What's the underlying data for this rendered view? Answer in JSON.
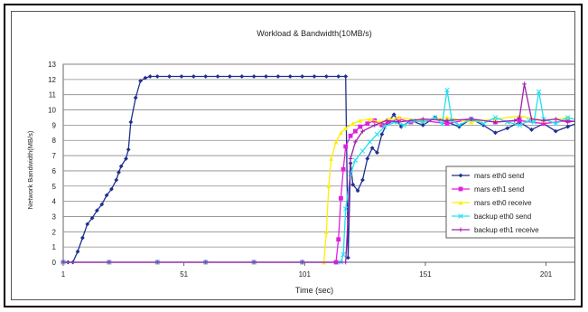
{
  "chart_data": {
    "type": "line",
    "title": "Workload & Bandwidth(10MB/s)",
    "xlabel": "Time (sec)",
    "ylabel": "Network Bandwidth(MB/s)",
    "xlim": [
      1,
      215
    ],
    "ylim": [
      0,
      13
    ],
    "x_ticks": [
      1,
      51,
      101,
      151,
      201
    ],
    "y_ticks": [
      0,
      1,
      2,
      3,
      4,
      5,
      6,
      7,
      8,
      9,
      10,
      11,
      12,
      13
    ],
    "grid": true,
    "legend_position": "right-center",
    "series": [
      {
        "name": "mars eth0 send",
        "color": "#1f2f8f",
        "marker": "diamond",
        "x": [
          1,
          3,
          5,
          7,
          9,
          11,
          13,
          15,
          17,
          19,
          21,
          23,
          24,
          25,
          27,
          28,
          29,
          31,
          33,
          35,
          37,
          40,
          45,
          50,
          55,
          60,
          65,
          70,
          75,
          80,
          85,
          90,
          95,
          100,
          105,
          110,
          115,
          118,
          119,
          120,
          121,
          123,
          125,
          127,
          129,
          131,
          133,
          135,
          138,
          141,
          145,
          150,
          155,
          160,
          165,
          170,
          175,
          180,
          185,
          190,
          195,
          200,
          205,
          210,
          215
        ],
        "y": [
          0,
          0,
          0,
          0.7,
          1.6,
          2.5,
          2.9,
          3.4,
          3.8,
          4.4,
          4.8,
          5.4,
          5.9,
          6.3,
          6.8,
          7.4,
          9.2,
          10.8,
          11.9,
          12.1,
          12.2,
          12.2,
          12.2,
          12.2,
          12.2,
          12.2,
          12.2,
          12.2,
          12.2,
          12.2,
          12.2,
          12.2,
          12.2,
          12.2,
          12.2,
          12.2,
          12.2,
          12.2,
          0.3,
          6.5,
          5.1,
          4.7,
          5.4,
          6.8,
          7.5,
          7.2,
          8.4,
          9.1,
          9.7,
          8.9,
          9.3,
          9.0,
          9.5,
          9.2,
          8.9,
          9.4,
          9.0,
          8.5,
          8.8,
          9.2,
          8.7,
          9.1,
          8.6,
          8.9,
          9.2
        ]
      },
      {
        "name": "mars eth1 send",
        "color": "#e020e0",
        "marker": "square",
        "x": [
          1,
          20,
          40,
          60,
          80,
          100,
          114,
          115,
          116,
          117,
          118,
          120,
          122,
          124,
          127,
          130,
          133,
          136,
          140,
          145,
          150,
          160,
          170,
          180,
          190,
          200,
          210,
          215
        ],
        "y": [
          0,
          0,
          0,
          0,
          0,
          0,
          0,
          1.5,
          4.2,
          6.1,
          7.6,
          8.3,
          8.6,
          8.9,
          9.1,
          9.3,
          9.0,
          9.2,
          9.4,
          9.2,
          9.3,
          9.1,
          9.4,
          9.2,
          9.3,
          9.1,
          9.3,
          9.2
        ]
      },
      {
        "name": "mars eth0 receive",
        "color": "#ffee00",
        "marker": "triangle",
        "x": [
          1,
          20,
          40,
          60,
          80,
          100,
          109,
          110,
          111,
          112,
          114,
          116,
          118,
          121,
          124,
          128,
          132,
          136,
          140,
          150,
          160,
          170,
          180,
          190,
          200,
          210,
          215
        ],
        "y": [
          0,
          0,
          0,
          0,
          0,
          0,
          0,
          2.0,
          5.0,
          6.8,
          7.9,
          8.5,
          8.8,
          9.1,
          9.3,
          9.4,
          9.2,
          9.4,
          9.5,
          9.3,
          9.5,
          9.2,
          9.4,
          9.6,
          9.3,
          9.5,
          9.3
        ]
      },
      {
        "name": "backup eth0 send",
        "color": "#20e0f0",
        "marker": "x",
        "x": [
          1,
          20,
          40,
          60,
          80,
          100,
          116,
          117,
          118,
          120,
          122,
          125,
          128,
          131,
          134,
          138,
          142,
          146,
          150,
          155,
          158,
          160,
          162,
          165,
          170,
          175,
          180,
          185,
          190,
          194,
          196,
          198,
          200,
          205,
          210,
          215
        ],
        "y": [
          0,
          0,
          0,
          0,
          0,
          0,
          0,
          0.5,
          3.5,
          5.8,
          6.7,
          7.3,
          7.9,
          8.4,
          8.9,
          9.2,
          9.0,
          9.3,
          9.2,
          9.5,
          9.1,
          11.3,
          9.3,
          9.0,
          9.4,
          9.1,
          9.5,
          9.2,
          9.0,
          9.3,
          9.2,
          11.2,
          9.4,
          9.1,
          9.5,
          9.3
        ]
      },
      {
        "name": "backup eth1 receive",
        "color": "#a020b0",
        "marker": "plus",
        "x": [
          1,
          20,
          40,
          60,
          80,
          100,
          118,
          119,
          120,
          122,
          125,
          130,
          135,
          140,
          150,
          160,
          170,
          180,
          188,
          190,
          192,
          195,
          200,
          205,
          210,
          215
        ],
        "y": [
          0,
          0,
          0,
          0,
          0,
          0,
          0,
          3.0,
          6.8,
          7.9,
          8.6,
          9.0,
          9.3,
          9.2,
          9.4,
          9.3,
          9.4,
          9.2,
          9.3,
          9.5,
          11.7,
          9.4,
          9.3,
          9.4,
          9.2,
          9.3
        ]
      }
    ]
  }
}
